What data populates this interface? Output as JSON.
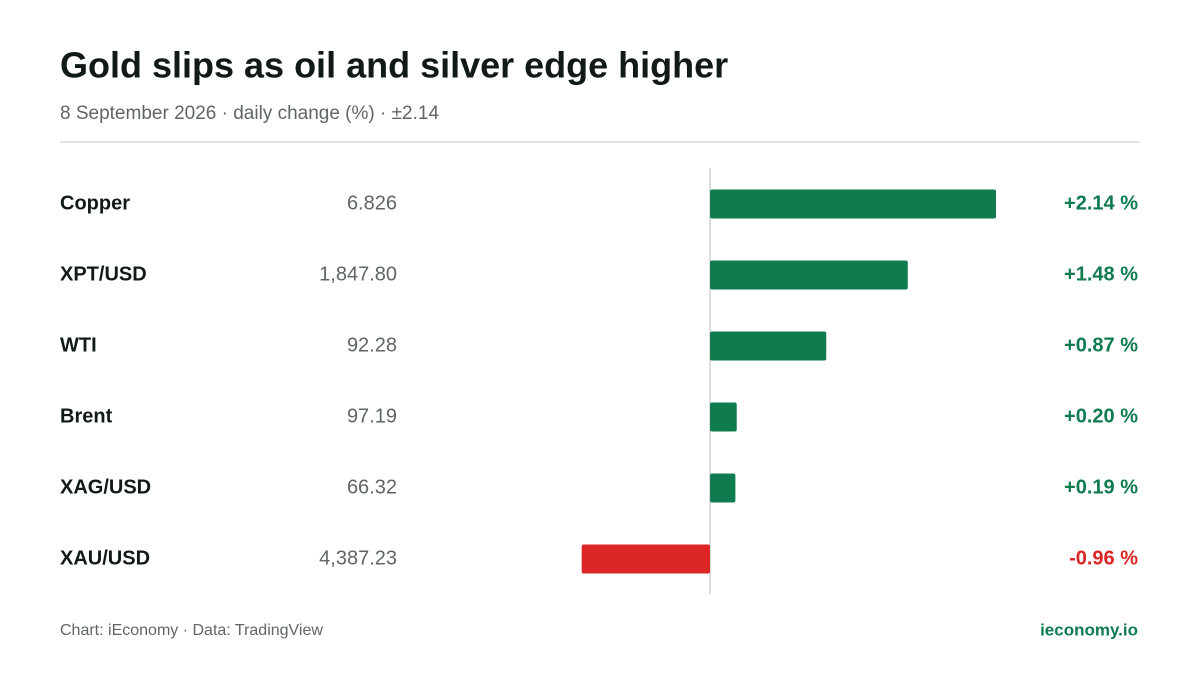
{
  "chart_data": {
    "type": "bar",
    "title": "Gold slips as oil and silver edge higher",
    "subtitle": "8 September 2026 · daily change (%) · ±2.14",
    "categories": [
      "Copper",
      "XPT/USD",
      "WTI",
      "Brent",
      "XAG/USD",
      "XAU/USD"
    ],
    "price_labels": [
      "6.826",
      "1,847.80",
      "92.28",
      "97.19",
      "66.32",
      "4,387.23"
    ],
    "values": [
      2.14,
      1.48,
      0.87,
      0.2,
      0.19,
      -0.96
    ],
    "value_labels": [
      "+2.14 %",
      "+1.48 %",
      "+0.87 %",
      "+0.20 %",
      "+0.19 %",
      "-0.96 %"
    ],
    "xlim": [
      -2.14,
      2.14
    ],
    "positive_color": "#0f7b4f",
    "negative_color": "#dc2626",
    "source": "Chart: iEconomy · Data: TradingView",
    "brand": "ieconomy.io"
  }
}
